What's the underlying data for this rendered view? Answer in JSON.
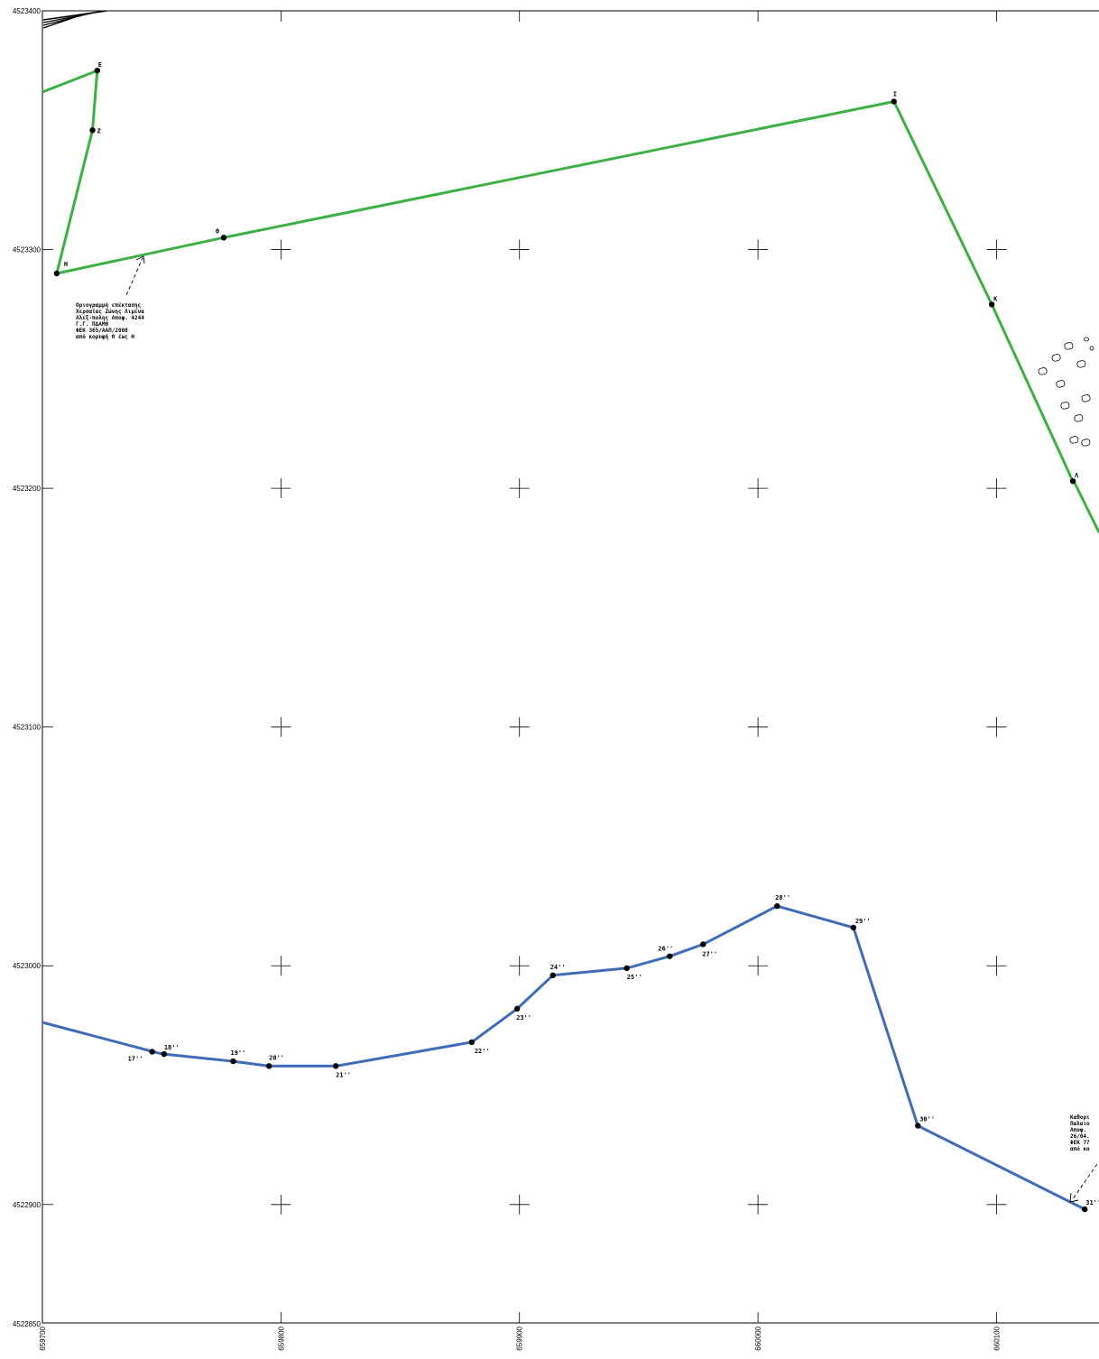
{
  "map": {
    "grid": {
      "x_ticks": [
        "659700",
        "659800",
        "659900",
        "660000",
        "660100"
      ],
      "y_ticks": [
        "4523400",
        "4523300",
        "4523200",
        "4523100",
        "4523000",
        "4522900",
        "4522850"
      ]
    },
    "green_line": {
      "color": "#3cb043",
      "points": [
        {
          "label": "Ε",
          "x": 659723,
          "y": 4523375
        },
        {
          "label": "Ζ",
          "x": 659721,
          "y": 4523350
        },
        {
          "label": "Η",
          "x": 659706,
          "y": 4523290
        },
        {
          "label": "Θ",
          "x": 659776,
          "y": 4523305
        },
        {
          "label": "Ι",
          "x": 660057,
          "y": 4523362
        },
        {
          "label": "Κ",
          "x": 660098,
          "y": 4523277
        },
        {
          "label": "Λ",
          "x": 660132,
          "y": 4523203
        }
      ]
    },
    "blue_line": {
      "color": "#3f6cb8",
      "points": [
        {
          "label": "17''",
          "x": 659746,
          "y": 4522964
        },
        {
          "label": "18''",
          "x": 659751,
          "y": 4522963
        },
        {
          "label": "19''",
          "x": 659780,
          "y": 4522960
        },
        {
          "label": "20''",
          "x": 659795,
          "y": 4522958
        },
        {
          "label": "21''",
          "x": 659823,
          "y": 4522958
        },
        {
          "label": "22''",
          "x": 659880,
          "y": 4522968
        },
        {
          "label": "23''",
          "x": 659899,
          "y": 4522982
        },
        {
          "label": "24''",
          "x": 659914,
          "y": 4522996
        },
        {
          "label": "25''",
          "x": 659945,
          "y": 4522999
        },
        {
          "label": "26''",
          "x": 659963,
          "y": 4523004
        },
        {
          "label": "27''",
          "x": 659977,
          "y": 4523009
        },
        {
          "label": "28''",
          "x": 660008,
          "y": 4523025
        },
        {
          "label": "29''",
          "x": 660040,
          "y": 4523016
        },
        {
          "label": "30''",
          "x": 660067,
          "y": 4522933
        },
        {
          "label": "31''",
          "x": 660137,
          "y": 4522898
        }
      ]
    },
    "note_left": {
      "lines": [
        "Οριογραμμή επέκτασης",
        "Χερσαίας Ζώνης Λιμένα",
        "Αλεξ-πολης Αποφ. 4244",
        "Γ.Γ. ΠΔΑΜΘ",
        "ΦΕΚ 365/ΑΑΠ/2008",
        "από κορυφή Θ έως Η"
      ]
    },
    "note_right": {
      "lines": [
        "Καθορι",
        "Παλαιο",
        "Αποφ.",
        "26/04.",
        "ΦΕΚ 77",
        "από κο"
      ]
    }
  }
}
